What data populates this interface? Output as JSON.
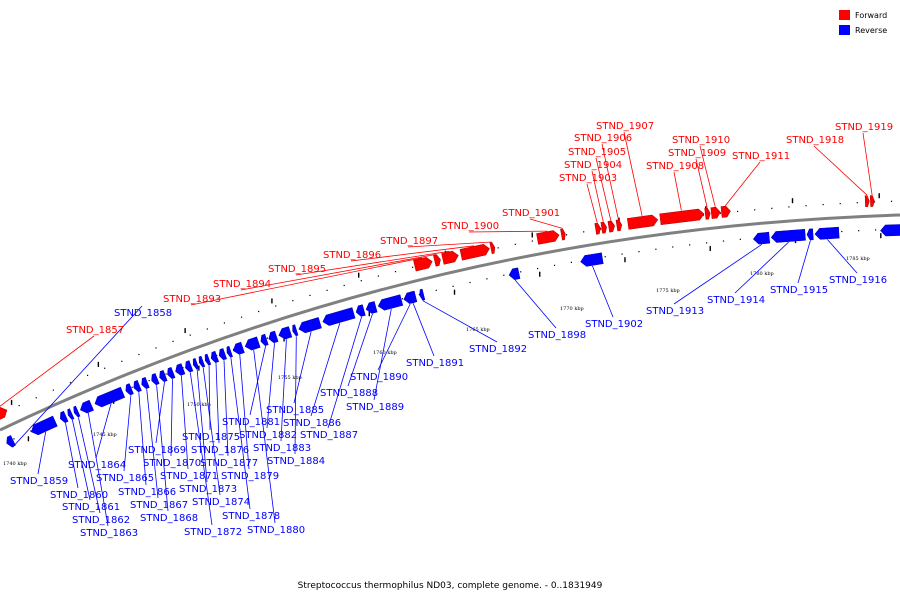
{
  "caption": "Streptococcus thermophilus ND03, complete genome. - 0..1831949",
  "colors": {
    "forward": "#ff0000",
    "reverse": "#0000ff",
    "backbone": "#808080"
  },
  "legend": [
    {
      "label": "Forward",
      "color": "#ff0000"
    },
    {
      "label": "Reverse",
      "color": "#0000ff"
    }
  ],
  "scale_labels": [
    "1740 kbp",
    "1745 kbp",
    "1750 kbp",
    "1755 kbp",
    "1760 kbp",
    "1765 kbp",
    "1770 kbp",
    "1775 kbp",
    "1780 kbp",
    "1785 kbp"
  ],
  "forward_genes": [
    "STND_1857",
    "STND_1893",
    "STND_1894",
    "STND_1895",
    "STND_1896",
    "STND_1897",
    "STND_1900",
    "STND_1901",
    "STND_1903",
    "STND_1904",
    "STND_1905",
    "STND_1906",
    "STND_1907",
    "STND_1908",
    "STND_1909",
    "STND_1910",
    "STND_1911",
    "STND_1918",
    "STND_1919"
  ],
  "reverse_genes": [
    "STND_1858",
    "STND_1859",
    "STND_1860",
    "STND_1861",
    "STND_1862",
    "STND_1863",
    "STND_1864",
    "STND_1865",
    "STND_1866",
    "STND_1867",
    "STND_1868",
    "STND_1869",
    "STND_1870",
    "STND_1871",
    "STND_1872",
    "STND_1873",
    "STND_1874",
    "STND_1875",
    "STND_1876",
    "STND_1877",
    "STND_1878",
    "STND_1879",
    "STND_1880",
    "STND_1881",
    "STND_1882",
    "STND_1883",
    "STND_1884",
    "STND_1885",
    "STND_1886",
    "STND_1887",
    "STND_1888",
    "STND_1889",
    "STND_1890",
    "STND_1891",
    "STND_1892",
    "STND_1898",
    "STND_1902",
    "STND_1913",
    "STND_1914",
    "STND_1915",
    "STND_1916"
  ]
}
